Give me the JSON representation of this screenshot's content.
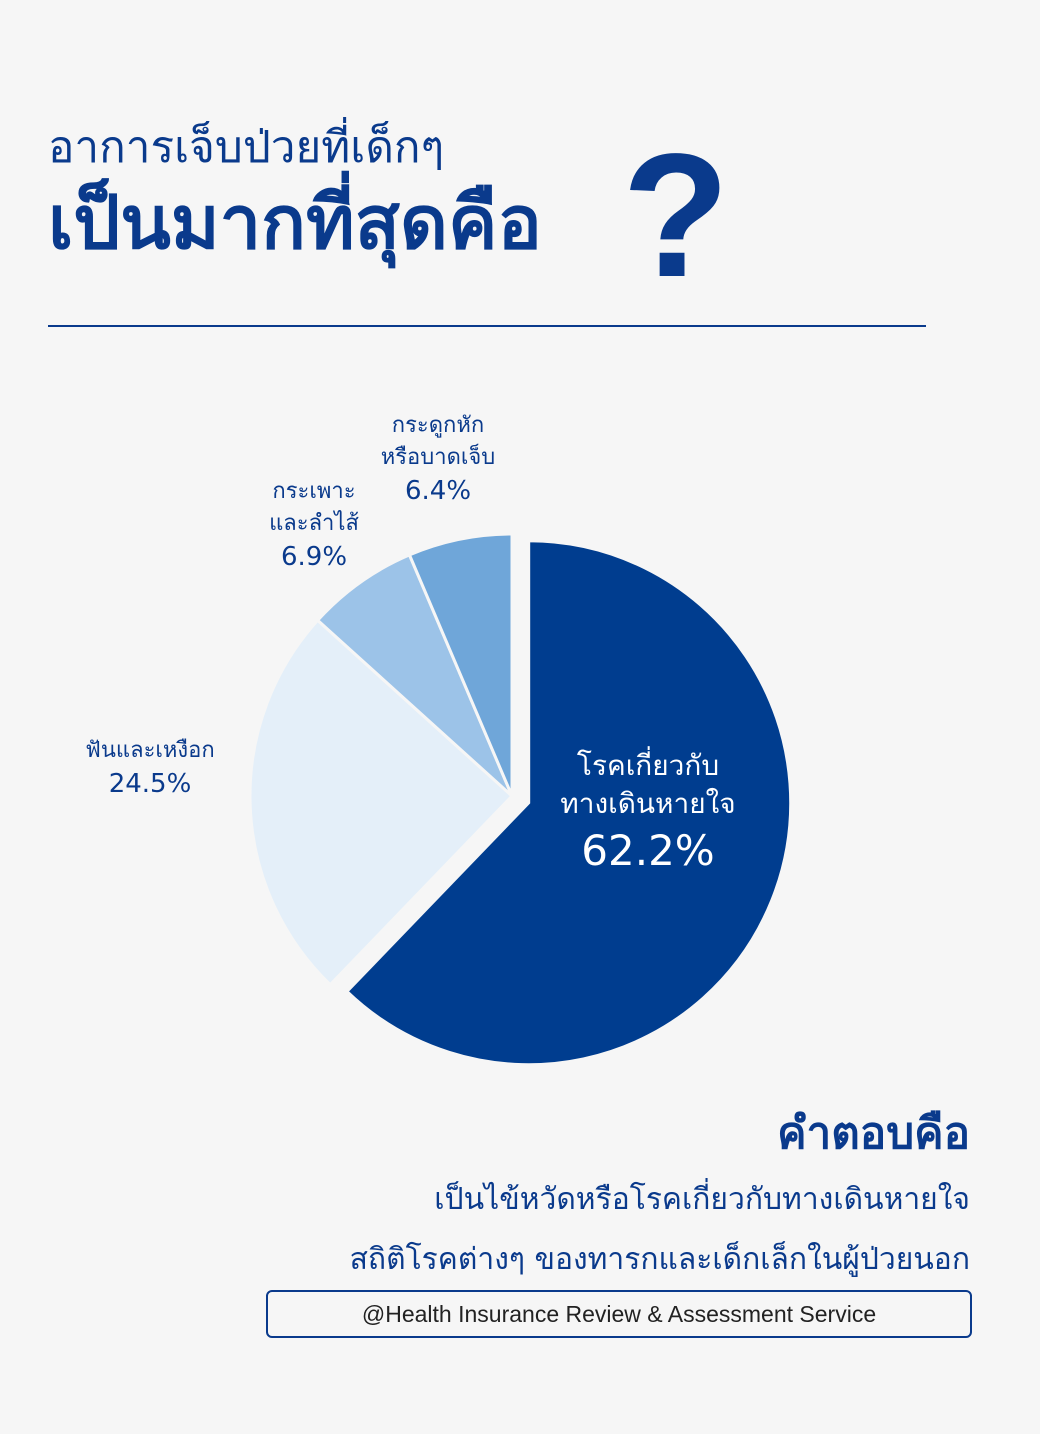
{
  "title": {
    "line1": "อาการเจ็บป่วยที่เด็กๆ",
    "line2": "เป็นมากที่สุดคือ",
    "mark": "?"
  },
  "colors": {
    "primary": "#0a3a8c",
    "slice_respiratory": "#003d8f",
    "slice_teeth": "#e4eff9",
    "slice_stomach": "#9cc3e8",
    "slice_fracture": "#6fa6d9",
    "background": "#f6f6f6"
  },
  "chart_data": {
    "type": "pie",
    "slices": [
      {
        "label_lines": [
          "โรคเกี่ยวกับ",
          "ทางเดินหายใจ"
        ],
        "value": 62.2,
        "value_label": "62.2%",
        "color": "#003d8f",
        "exploded": true
      },
      {
        "label_lines": [
          "ฟันและเหงือก"
        ],
        "value": 24.5,
        "value_label": "24.5%",
        "color": "#e4eff9",
        "exploded": false
      },
      {
        "label_lines": [
          "กระเพาะ",
          "และลำไส้"
        ],
        "value": 6.9,
        "value_label": "6.9%",
        "color": "#9cc3e8",
        "exploded": false
      },
      {
        "label_lines": [
          "กระดูกหัก",
          "หรือบาดเจ็บ"
        ],
        "value": 6.4,
        "value_label": "6.4%",
        "color": "#6fa6d9",
        "exploded": false
      }
    ]
  },
  "answer": {
    "heading": "คำตอบคือ",
    "line1": "เป็นไข้หวัดหรือโรคเกี่ยวกับทางเดินหายใจ",
    "line2": "สถิติโรคต่างๆ ของทารกและเด็กเล็กในผู้ป่วยนอก"
  },
  "source": "@Health Insurance Review & Assessment Service"
}
